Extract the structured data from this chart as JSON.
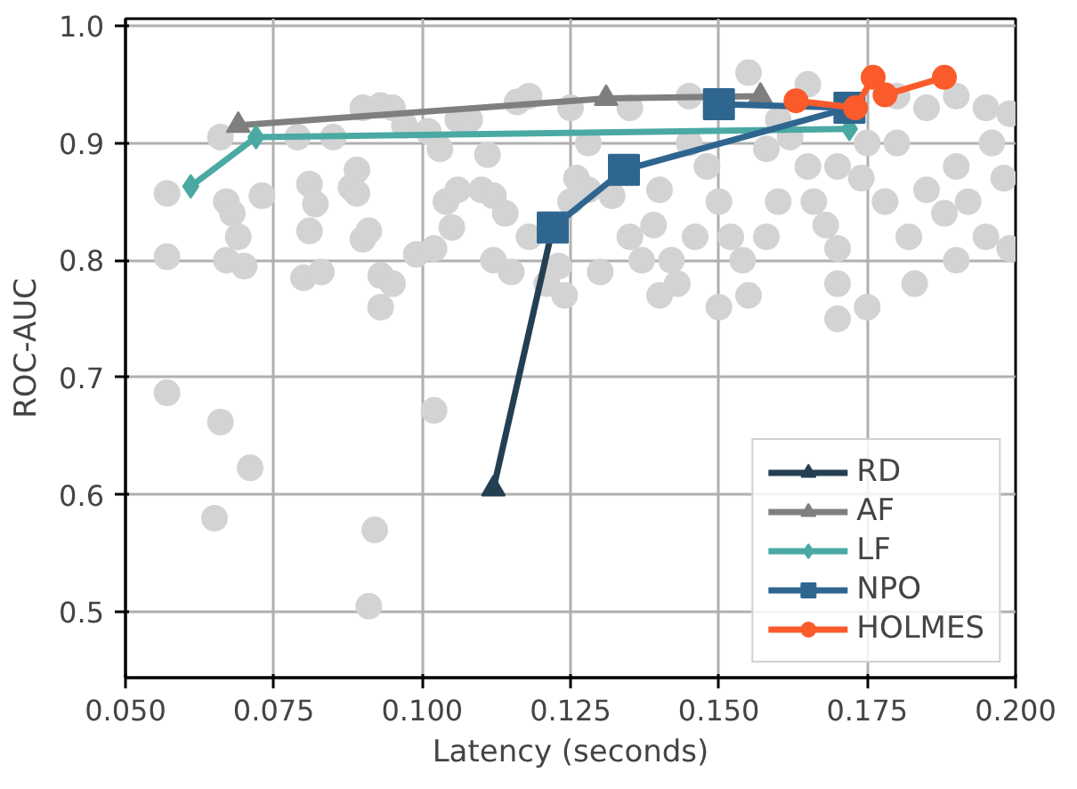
{
  "chart_data": {
    "type": "line",
    "xlabel": "Latency (seconds)",
    "ylabel": "ROC-AUC",
    "xlim": [
      0.05,
      0.2
    ],
    "ylim": [
      0.444,
      1.006
    ],
    "xticks": [
      {
        "value": 0.05,
        "label": "0.050"
      },
      {
        "value": 0.075,
        "label": "0.075"
      },
      {
        "value": 0.1,
        "label": "0.100"
      },
      {
        "value": 0.125,
        "label": "0.125"
      },
      {
        "value": 0.15,
        "label": "0.150"
      },
      {
        "value": 0.175,
        "label": "0.175"
      },
      {
        "value": 0.2,
        "label": "0.200"
      }
    ],
    "yticks": [
      0.5,
      0.6,
      0.7,
      0.8,
      0.9,
      {
        "value": 1.0,
        "label": "1.0"
      }
    ],
    "grid": true,
    "legend": "bottom right",
    "line_style": "solid",
    "series": [
      {
        "type": "scatter",
        "marker": "circle",
        "color": "#d3d3d3",
        "x": [
          0.057,
          0.057,
          0.057,
          0.066,
          0.067,
          0.068,
          0.069,
          0.067,
          0.07,
          0.066,
          0.071,
          0.065,
          0.073,
          0.079,
          0.081,
          0.082,
          0.081,
          0.08,
          0.083,
          0.085,
          0.088,
          0.089,
          0.089,
          0.09,
          0.093,
          0.095,
          0.097,
          0.09,
          0.091,
          0.093,
          0.095,
          0.093,
          0.092,
          0.091,
          0.102,
          0.099,
          0.102,
          0.105,
          0.104,
          0.106,
          0.101,
          0.103,
          0.106,
          0.108,
          0.111,
          0.11,
          0.112,
          0.114,
          0.116,
          0.118,
          0.115,
          0.112,
          0.118,
          0.121,
          0.123,
          0.124,
          0.126,
          0.128,
          0.128,
          0.132,
          0.135,
          0.137,
          0.139,
          0.14,
          0.142,
          0.143,
          0.146,
          0.145,
          0.148,
          0.15,
          0.152,
          0.154,
          0.155,
          0.158,
          0.16,
          0.158,
          0.162,
          0.165,
          0.166,
          0.168,
          0.17,
          0.17,
          0.17,
          0.174,
          0.175,
          0.178,
          0.18,
          0.182,
          0.183,
          0.185,
          0.188,
          0.19,
          0.192,
          0.195,
          0.196,
          0.198,
          0.199,
          0.145,
          0.155,
          0.165,
          0.185,
          0.19,
          0.195,
          0.199,
          0.135,
          0.125,
          0.16,
          0.18,
          0.125,
          0.13,
          0.14,
          0.15,
          0.17,
          0.19,
          0.175
        ],
        "values": [
          0.857,
          0.803,
          0.687,
          0.905,
          0.85,
          0.84,
          0.82,
          0.8,
          0.795,
          0.662,
          0.623,
          0.58,
          0.855,
          0.905,
          0.865,
          0.848,
          0.825,
          0.785,
          0.79,
          0.905,
          0.862,
          0.877,
          0.857,
          0.93,
          0.932,
          0.93,
          0.915,
          0.818,
          0.825,
          0.787,
          0.78,
          0.76,
          0.57,
          0.505,
          0.672,
          0.805,
          0.81,
          0.828,
          0.85,
          0.86,
          0.91,
          0.895,
          0.92,
          0.92,
          0.89,
          0.86,
          0.855,
          0.84,
          0.935,
          0.94,
          0.79,
          0.8,
          0.82,
          0.78,
          0.795,
          0.77,
          0.87,
          0.86,
          0.9,
          0.855,
          0.82,
          0.8,
          0.83,
          0.86,
          0.8,
          0.78,
          0.82,
          0.9,
          0.88,
          0.85,
          0.82,
          0.8,
          0.77,
          0.82,
          0.85,
          0.895,
          0.905,
          0.88,
          0.85,
          0.83,
          0.81,
          0.75,
          0.88,
          0.87,
          0.9,
          0.85,
          0.9,
          0.82,
          0.78,
          0.86,
          0.84,
          0.88,
          0.85,
          0.82,
          0.9,
          0.87,
          0.81,
          0.94,
          0.96,
          0.95,
          0.93,
          0.94,
          0.93,
          0.925,
          0.93,
          0.93,
          0.92,
          0.94,
          0.85,
          0.79,
          0.77,
          0.76,
          0.78,
          0.8,
          0.76
        ]
      },
      {
        "name": "RD",
        "marker": "triangle",
        "color": "#253f52",
        "x": [
          0.112,
          0.122
        ],
        "values": [
          0.605,
          0.828
        ]
      },
      {
        "name": "AF",
        "marker": "triangle",
        "color": "#7f7f7f",
        "x": [
          0.069,
          0.131,
          0.157
        ],
        "values": [
          0.915,
          0.938,
          0.94
        ]
      },
      {
        "name": "LF",
        "marker": "diamond",
        "color": "#4aa9a3",
        "x": [
          0.061,
          0.072,
          0.172
        ],
        "values": [
          0.863,
          0.905,
          0.912
        ]
      },
      {
        "name": "NPO",
        "marker": "square",
        "color": "#2f6690",
        "x": [
          0.122,
          0.134,
          0.172,
          0.15
        ],
        "values": [
          0.828,
          0.877,
          0.93,
          0.933
        ]
      },
      {
        "name": "HOLMES",
        "marker": "circle",
        "color": "#fb5a2b",
        "x": [
          0.163,
          0.173,
          0.176,
          0.178,
          0.188
        ],
        "values": [
          0.936,
          0.93,
          0.956,
          0.941,
          0.956
        ]
      }
    ]
  }
}
